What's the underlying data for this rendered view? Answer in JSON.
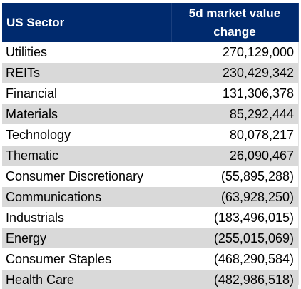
{
  "chart_data": {
    "type": "table",
    "columns": [
      "US Sector",
      "5d market value change"
    ],
    "rows": [
      {
        "sector": "Utilities",
        "value_text": "270,129,000",
        "value": 270129000
      },
      {
        "sector": "REITs",
        "value_text": "230,429,342",
        "value": 230429342
      },
      {
        "sector": "Financial",
        "value_text": "131,306,378",
        "value": 131306378
      },
      {
        "sector": "Materials",
        "value_text": "85,292,444",
        "value": 85292444
      },
      {
        "sector": "Technology",
        "value_text": "80,078,217",
        "value": 80078217
      },
      {
        "sector": "Thematic",
        "value_text": "26,090,467",
        "value": 26090467
      },
      {
        "sector": "Consumer Discretionary",
        "value_text": "(55,895,288)",
        "value": -55895288
      },
      {
        "sector": "Communications",
        "value_text": "(63,928,250)",
        "value": -63928250
      },
      {
        "sector": "Industrials",
        "value_text": "(183,496,015)",
        "value": -183496015
      },
      {
        "sector": "Energy",
        "value_text": "(255,015,069)",
        "value": -255015069
      },
      {
        "sector": "Consumer Staples",
        "value_text": "(468,290,584)",
        "value": -468290584
      },
      {
        "sector": "Health Care",
        "value_text": "(482,986,518)",
        "value": -482986518
      }
    ]
  },
  "colors": {
    "header_bg": "#002a6e",
    "header_text": "#ffffff",
    "band_bg": "#d9d9d9"
  }
}
